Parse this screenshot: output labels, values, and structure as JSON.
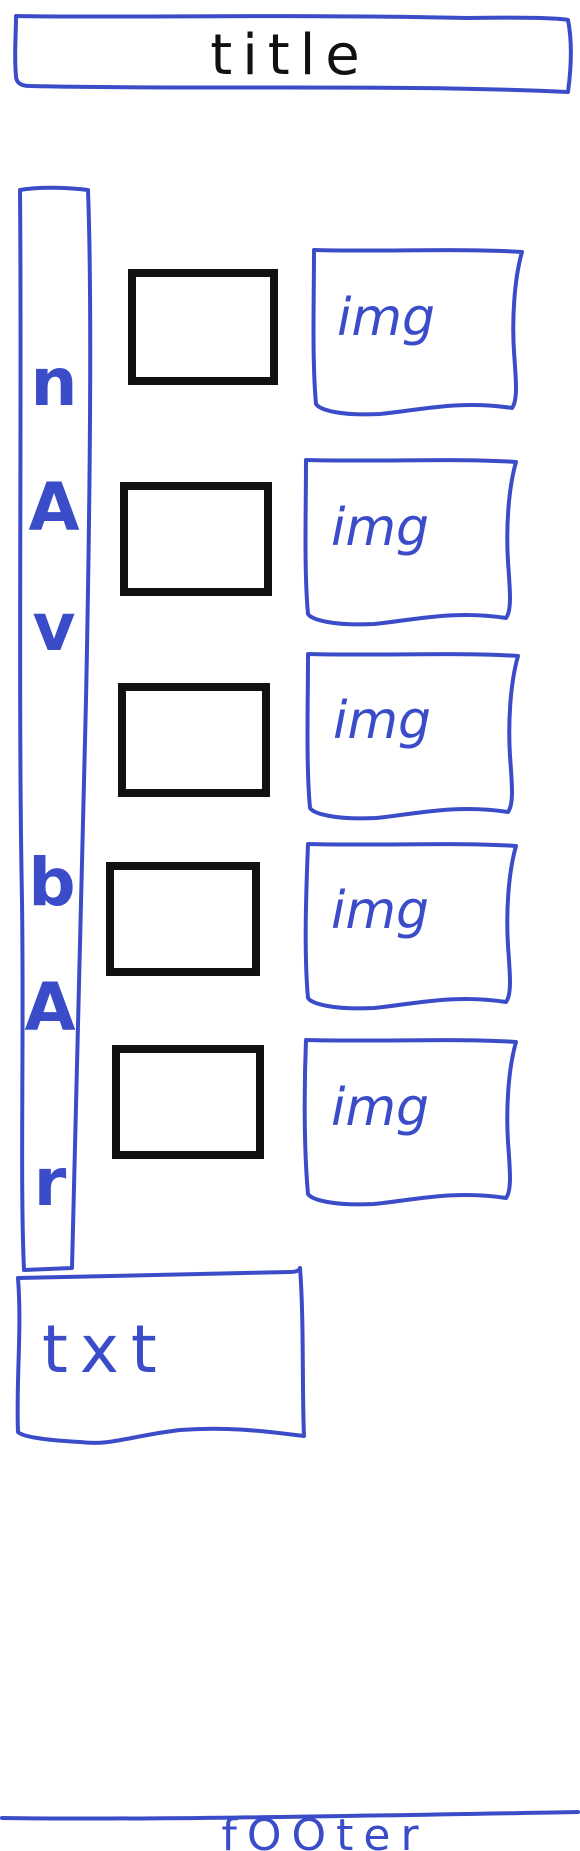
{
  "title": {
    "label": "title"
  },
  "navbar": {
    "letters": [
      "n",
      "A",
      "v",
      "b",
      "A",
      "r"
    ]
  },
  "rows": [
    {
      "image_label": "img"
    },
    {
      "image_label": "img"
    },
    {
      "image_label": "img"
    },
    {
      "image_label": "img"
    },
    {
      "image_label": "img"
    }
  ],
  "text_box": {
    "label": "txt"
  },
  "footer": {
    "label": "fOOter"
  },
  "colors": {
    "sketch_blue": "#3b4cc9",
    "ink_black": "#111111"
  }
}
